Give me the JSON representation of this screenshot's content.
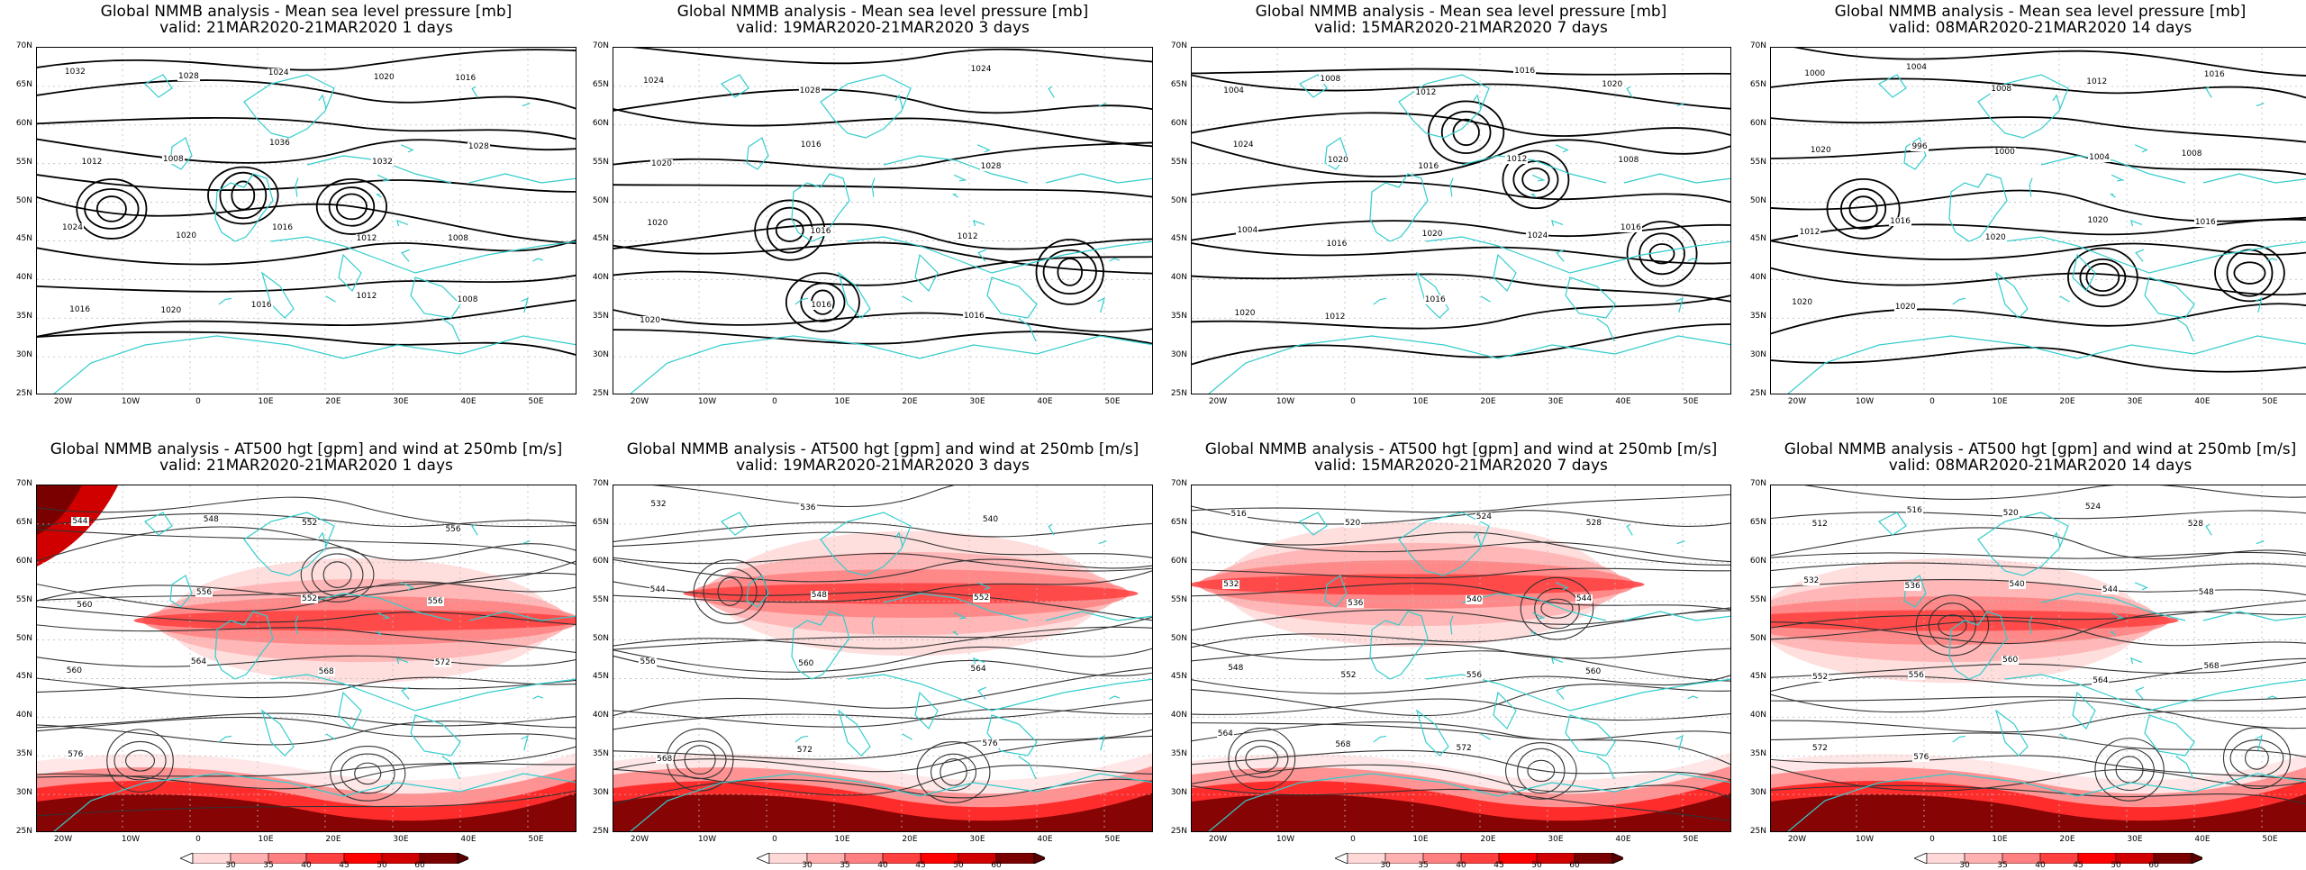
{
  "panels": [
    {
      "row": 0,
      "col": 0,
      "type": "mslp",
      "title": "Global NMMB analysis - Mean sea level pressure [mb]",
      "valid": "valid: 21MAR2020-21MAR2020   1 days",
      "contour_labels": [
        "1032",
        "1028",
        "1024",
        "1020",
        "1016",
        "1012",
        "1008",
        "1036",
        "1032",
        "1028",
        "1024",
        "1020",
        "1016",
        "1012",
        "1008",
        "1016",
        "1020",
        "1016",
        "1012",
        "1008"
      ]
    },
    {
      "row": 0,
      "col": 1,
      "type": "mslp",
      "title": "Global NMMB analysis - Mean sea level pressure [mb]",
      "valid": "valid: 19MAR2020-21MAR2020   3 days",
      "contour_labels": [
        "1024",
        "1028",
        "1024",
        "1020",
        "1016",
        "1028",
        "1020",
        "1016",
        "1012",
        "1020",
        "1016",
        "1016"
      ]
    },
    {
      "row": 0,
      "col": 2,
      "type": "mslp",
      "title": "Global NMMB analysis - Mean sea level pressure [mb]",
      "valid": "valid: 15MAR2020-21MAR2020   7 days",
      "contour_labels": [
        "1004",
        "1008",
        "1012",
        "1016",
        "1020",
        "1024",
        "1020",
        "1016",
        "1012",
        "1008",
        "1004",
        "1016",
        "1020",
        "1024",
        "1016",
        "1020",
        "1012",
        "1016"
      ]
    },
    {
      "row": 0,
      "col": 3,
      "type": "mslp",
      "title": "Global NMMB analysis - Mean sea level pressure [mb]",
      "valid": "valid: 08MAR2020-21MAR2020   14 days",
      "contour_labels": [
        "1000",
        "1004",
        "1008",
        "1012",
        "1016",
        "1020",
        "996",
        "1000",
        "1004",
        "1008",
        "1012",
        "1016",
        "1020",
        "1020",
        "1016",
        "1020",
        "1020"
      ]
    },
    {
      "row": 1,
      "col": 0,
      "type": "z500",
      "title": "Global NMMB analysis - AT500 hgt [gpm] and wind at 250mb [m/s]",
      "valid": "valid: 21MAR2020-21MAR2020   1 days",
      "contour_labels": [
        "544",
        "548",
        "552",
        "556",
        "560",
        "556",
        "552",
        "556",
        "560",
        "564",
        "568",
        "572",
        "576"
      ]
    },
    {
      "row": 1,
      "col": 1,
      "type": "z500",
      "title": "Global NMMB analysis - AT500 hgt [gpm] and wind at 250mb [m/s]",
      "valid": "valid: 19MAR2020-21MAR2020   3 days",
      "contour_labels": [
        "532",
        "536",
        "540",
        "544",
        "548",
        "552",
        "556",
        "560",
        "564",
        "568",
        "572",
        "576"
      ]
    },
    {
      "row": 1,
      "col": 2,
      "type": "z500",
      "title": "Global NMMB analysis - AT500 hgt [gpm] and wind at 250mb [m/s]",
      "valid": "valid: 15MAR2020-21MAR2020   7 days",
      "contour_labels": [
        "516",
        "520",
        "524",
        "528",
        "532",
        "536",
        "540",
        "544",
        "548",
        "552",
        "556",
        "560",
        "564",
        "568",
        "572"
      ]
    },
    {
      "row": 1,
      "col": 3,
      "type": "z500",
      "title": "Global NMMB analysis - AT500 hgt [gpm] and wind at 250mb [m/s]",
      "valid": "valid: 08MAR2020-21MAR2020   14 days",
      "contour_labels": [
        "512",
        "516",
        "520",
        "524",
        "528",
        "532",
        "536",
        "540",
        "544",
        "548",
        "552",
        "556",
        "560",
        "564",
        "568",
        "572",
        "576"
      ]
    }
  ],
  "lat_labels": [
    "70N",
    "65N",
    "60N",
    "55N",
    "50N",
    "45N",
    "40N",
    "35N",
    "30N",
    "25N"
  ],
  "lon_labels": [
    "20W",
    "10W",
    "0",
    "10E",
    "20E",
    "30E",
    "40E",
    "50E"
  ],
  "colorbar": {
    "labels": [
      "30",
      "35",
      "40",
      "45",
      "50",
      "60"
    ],
    "colors": [
      "#ffd8d8",
      "#ffb0b0",
      "#ff8080",
      "#ff4040",
      "#ff0000",
      "#d00000",
      "#7a0000"
    ]
  },
  "colors": {
    "coast": "#33cccc",
    "mslp_contour": "#000000",
    "z500_contour": "#333333",
    "jet": "#ff2020"
  }
}
